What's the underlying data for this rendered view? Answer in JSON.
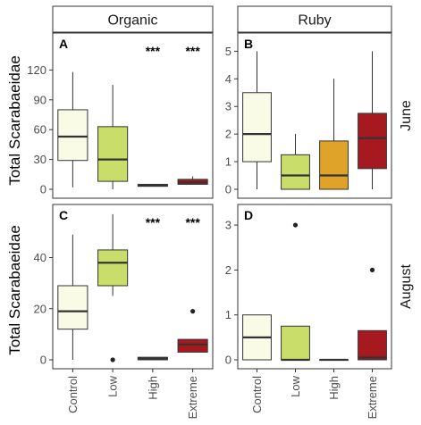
{
  "figure": {
    "ylabel": "Total Scarabaeidae",
    "categories": [
      "Control",
      "Low",
      "High",
      "Extreme"
    ],
    "colors": {
      "Control": "#fafbe6",
      "Low": "#c9de6a",
      "High": "#e0a32a",
      "Extreme": "#a61a1f"
    }
  },
  "chart_data": [
    {
      "type": "box",
      "panel": "A",
      "column": "Organic",
      "row": "June",
      "ylim": [
        0,
        150
      ],
      "yticks": [
        0,
        30,
        60,
        90,
        120
      ],
      "significance": [
        "",
        "",
        "***",
        "***"
      ],
      "boxes": [
        {
          "category": "Control",
          "q1": 29,
          "median": 53,
          "q3": 80,
          "whisker_low": 2,
          "whisker_high": 118,
          "outliers": []
        },
        {
          "category": "Low",
          "q1": 8,
          "median": 30,
          "q3": 63,
          "whisker_low": 0,
          "whisker_high": 105,
          "outliers": []
        },
        {
          "category": "High",
          "q1": 3,
          "median": 4,
          "q3": 5,
          "whisker_low": 3,
          "whisker_high": 5,
          "outliers": []
        },
        {
          "category": "Extreme",
          "q1": 5,
          "median": 7,
          "q3": 10,
          "whisker_low": 5,
          "whisker_high": 13,
          "outliers": []
        }
      ]
    },
    {
      "type": "box",
      "panel": "B",
      "column": "Ruby",
      "row": "June",
      "ylim": [
        0,
        5.4
      ],
      "yticks": [
        0,
        1,
        2,
        3,
        4,
        5
      ],
      "significance": [
        "",
        "",
        "",
        ""
      ],
      "boxes": [
        {
          "category": "Control",
          "q1": 1,
          "median": 2,
          "q3": 3.5,
          "whisker_low": 0,
          "whisker_high": 5,
          "outliers": []
        },
        {
          "category": "Low",
          "q1": 0,
          "median": 0.5,
          "q3": 1.25,
          "whisker_low": 0,
          "whisker_high": 2,
          "outliers": []
        },
        {
          "category": "High",
          "q1": 0,
          "median": 0.5,
          "q3": 1.75,
          "whisker_low": 0,
          "whisker_high": 4,
          "outliers": []
        },
        {
          "category": "Extreme",
          "q1": 0.75,
          "median": 1.85,
          "q3": 2.75,
          "whisker_low": 0,
          "whisker_high": 5,
          "outliers": []
        }
      ]
    },
    {
      "type": "box",
      "panel": "C",
      "column": "Organic",
      "row": "August",
      "ylim": [
        0,
        58
      ],
      "yticks": [
        0,
        20,
        40
      ],
      "significance": [
        "",
        "",
        "***",
        "***"
      ],
      "boxes": [
        {
          "category": "Control",
          "q1": 12,
          "median": 19,
          "q3": 29,
          "whisker_low": 0,
          "whisker_high": 49,
          "outliers": []
        },
        {
          "category": "Low",
          "q1": 29,
          "median": 38,
          "q3": 43,
          "whisker_low": 25,
          "whisker_high": 57,
          "outliers": [
            0
          ]
        },
        {
          "category": "High",
          "q1": 0,
          "median": 0.5,
          "q3": 1,
          "whisker_low": 0,
          "whisker_high": 1,
          "outliers": []
        },
        {
          "category": "Extreme",
          "q1": 3,
          "median": 6,
          "q3": 8,
          "whisker_low": 3,
          "whisker_high": 8,
          "outliers": [
            19
          ]
        }
      ]
    },
    {
      "type": "box",
      "panel": "D",
      "column": "Ruby",
      "row": "August",
      "ylim": [
        0,
        3.3
      ],
      "yticks": [
        0,
        1,
        2,
        3
      ],
      "significance": [
        "",
        "",
        "",
        ""
      ],
      "boxes": [
        {
          "category": "Control",
          "q1": 0,
          "median": 0.5,
          "q3": 1,
          "whisker_low": 0,
          "whisker_high": 1,
          "outliers": []
        },
        {
          "category": "Low",
          "q1": 0,
          "median": 0,
          "q3": 0.75,
          "whisker_low": 0,
          "whisker_high": 0.75,
          "outliers": [
            3
          ]
        },
        {
          "category": "High",
          "q1": 0,
          "median": 0,
          "q3": 0,
          "whisker_low": 0,
          "whisker_high": 0,
          "outliers": []
        },
        {
          "category": "Extreme",
          "q1": 0,
          "median": 0.05,
          "q3": 0.65,
          "whisker_low": 0,
          "whisker_high": 0.65,
          "outliers": [
            2
          ]
        }
      ]
    }
  ]
}
